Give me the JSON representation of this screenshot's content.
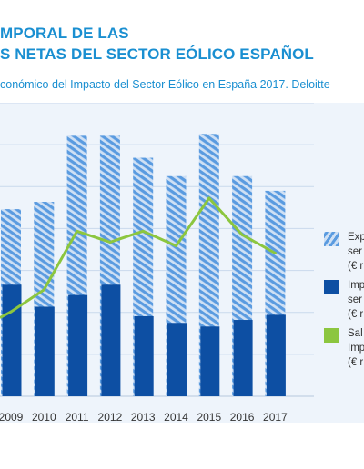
{
  "header": {
    "title_line1": "MPORAL DE LAS",
    "title_line2": "S NETAS DEL SECTOR EÓLICO ESPAÑOL",
    "subtitle": "conómico del Impacto del Sector Eólico en España 2017. Deloitte"
  },
  "colors": {
    "title": "#1a8fd1",
    "background_panel": "#eef4fb",
    "hatched_bar": "#5a9be0",
    "solid_bar": "#0d4fa3",
    "balance_line": "#8cc63f",
    "axis_text": "#333333"
  },
  "chart_data": {
    "type": "bar",
    "categories": [
      "2009",
      "2010",
      "2011",
      "2012",
      "2013",
      "2014",
      "2015",
      "2016",
      "2017"
    ],
    "series": [
      {
        "name": "",
        "kind": "bar-hatched",
        "values": [
          2550,
          2650,
          3550,
          3550,
          3250,
          3000,
          3575,
          3000,
          2800
        ]
      },
      {
        "name": "",
        "kind": "bar-solid",
        "values": [
          1520,
          1220,
          1380,
          1520,
          1090,
          1000,
          950,
          1040,
          1110
        ]
      },
      {
        "name": "",
        "kind": "line",
        "values": [
          1150,
          1450,
          2250,
          2100,
          2250,
          2050,
          2700,
          2200,
          1950
        ]
      }
    ],
    "ylim": [
      0,
      4000
    ],
    "grid": true,
    "legend_position": "right",
    "partial_first_category_left": true,
    "xlabel": "",
    "ylabel": ""
  },
  "legend": [
    {
      "lines": [
        "Exp",
        "ser",
        "(€ r"
      ],
      "swatch": "hatched"
    },
    {
      "lines": [
        "Imp",
        "ser",
        "(€ r"
      ],
      "swatch": "solid"
    },
    {
      "lines": [
        "Sal",
        "Imp",
        "(€ r"
      ],
      "swatch": "line"
    }
  ]
}
